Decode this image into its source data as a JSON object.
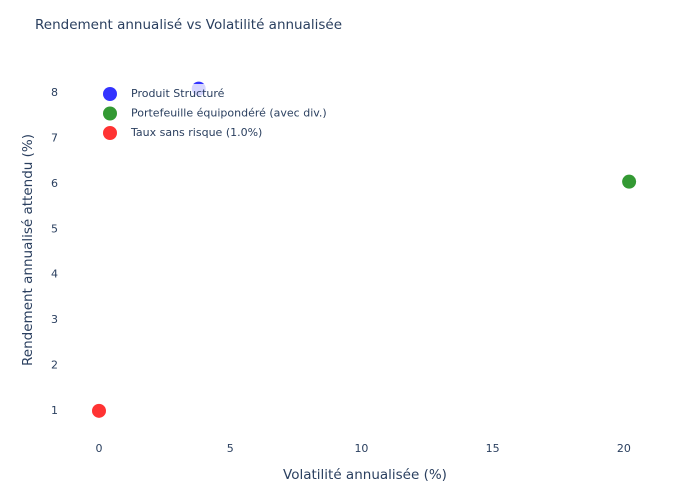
{
  "chart_data": {
    "type": "scatter",
    "title": "Rendement annualisé vs Volatilité annualisée",
    "x_label": "Volatilité annualisée (%)",
    "y_label": "Rendement annualisé attendu (%)",
    "series": [
      {
        "name": "Produit Structuré",
        "color": "#3333ff",
        "x": [
          3.8
        ],
        "values": [
          8.1
        ]
      },
      {
        "name": "Portefeuille équipondéré (avec div.)",
        "color": "#339933",
        "x": [
          20.2
        ],
        "values": [
          6.05
        ]
      },
      {
        "name": "Taux sans risque (1.0%)",
        "color": "#ff3333",
        "x": [
          0
        ],
        "values": [
          1.0
        ]
      }
    ],
    "xlim": [
      -0.8,
      21.3
    ],
    "xticks": [
      0,
      5,
      10,
      15,
      20
    ],
    "ylim": [
      0.6,
      8.4
    ],
    "yticks": [
      1,
      2,
      3,
      4,
      5,
      6,
      7,
      8
    ],
    "grid": false,
    "legend_position": "upper left"
  }
}
